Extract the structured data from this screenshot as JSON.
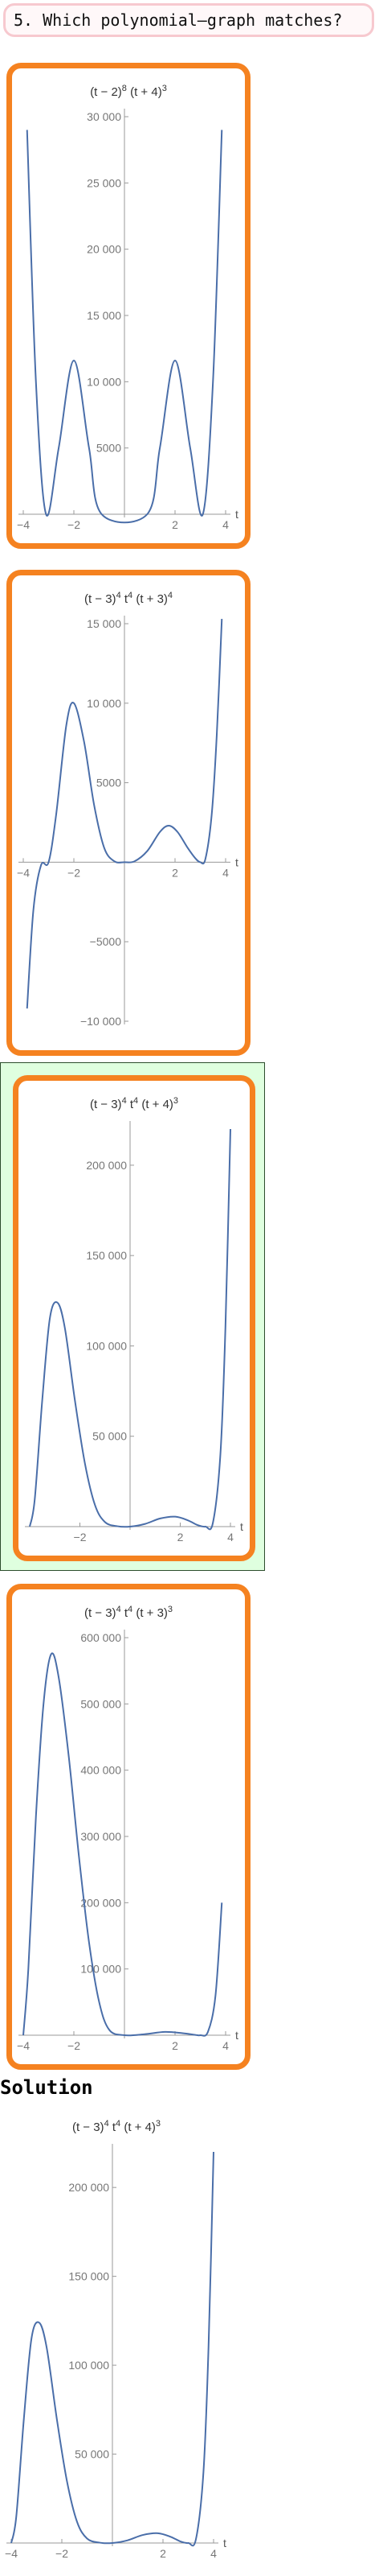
{
  "question": {
    "text": "5. Which polynomial–graph matches?"
  },
  "selected_option_index": 2,
  "options": [
    {
      "title_html": "(t − 2)<tspan baseline-shift='super' font-size='11'>8</tspan> (t + 4)<tspan baseline-shift='super' font-size='11'>3</tspan>",
      "title_text": "(t − 2)8 (t + 4)3",
      "chart_data": {
        "type": "line",
        "xlim": [
          -4,
          4
        ],
        "ylim": [
          0,
          30000
        ],
        "xticks": [
          -4,
          -2,
          2,
          4
        ],
        "yticks": [
          5000,
          10000,
          15000,
          20000,
          25000,
          30000
        ],
        "ytick_labels": [
          "5000",
          "10 000",
          "15 000",
          "20 000",
          "25 000",
          "30 000"
        ],
        "xtick_labels": [
          "−4",
          "−2",
          "2",
          "4"
        ],
        "xlabel": "t",
        "series": [
          {
            "fn": "sym",
            "points": [
              [
                -3.85,
                29000
              ],
              [
                -3.5,
                10000
              ],
              [
                -3.1,
                0
              ],
              [
                -2.6,
                5000
              ],
              [
                -2.0,
                11600
              ],
              [
                -1.4,
                5000
              ],
              [
                -0.9,
                0
              ],
              [
                0.9,
                0
              ],
              [
                1.4,
                5000
              ],
              [
                2.0,
                11600
              ],
              [
                2.6,
                5000
              ],
              [
                3.1,
                0
              ],
              [
                3.5,
                10000
              ],
              [
                3.85,
                29000
              ]
            ]
          }
        ]
      }
    },
    {
      "title_html": "(t − 3)<tspan baseline-shift='super' font-size='11'>4</tspan> t<tspan baseline-shift='super' font-size='11'>4</tspan> (t + 3)<tspan baseline-shift='super' font-size='11'>4</tspan>",
      "title_text": "(t − 3)4 t4 (t + 3)4",
      "chart_data": {
        "type": "line",
        "xlim": [
          -4,
          4
        ],
        "ylim": [
          -10000,
          15000
        ],
        "xticks": [
          -4,
          -2,
          2,
          4
        ],
        "yticks": [
          -10000,
          -5000,
          5000,
          10000,
          15000
        ],
        "ytick_labels": [
          "−10 000",
          "−5000",
          "5000",
          "10 000",
          "15 000"
        ],
        "xtick_labels": [
          "−4",
          "−2",
          "2",
          "4"
        ],
        "xlabel": "t",
        "series": [
          {
            "points": [
              [
                -3.85,
                -9200
              ],
              [
                -3.6,
                -3000
              ],
              [
                -3.3,
                -200
              ],
              [
                -3.0,
                0
              ],
              [
                -2.7,
                3000
              ],
              [
                -2.3,
                8600
              ],
              [
                -2.0,
                10000
              ],
              [
                -1.6,
                7600
              ],
              [
                -1.2,
                3600
              ],
              [
                -0.8,
                900
              ],
              [
                -0.4,
                60
              ],
              [
                0.0,
                0
              ],
              [
                0.4,
                60
              ],
              [
                0.9,
                700
              ],
              [
                1.4,
                1900
              ],
              [
                1.75,
                2300
              ],
              [
                2.1,
                1900
              ],
              [
                2.5,
                900
              ],
              [
                2.8,
                250
              ],
              [
                3.0,
                0
              ],
              [
                3.2,
                200
              ],
              [
                3.45,
                3000
              ],
              [
                3.65,
                8000
              ],
              [
                3.85,
                15300
              ]
            ]
          }
        ]
      }
    },
    {
      "title_html": "(t − 3)<tspan baseline-shift='super' font-size='11'>4</tspan> t<tspan baseline-shift='super' font-size='11'>4</tspan> (t + 4)<tspan baseline-shift='super' font-size='11'>3</tspan>",
      "title_text": "(t − 3)4 t4 (t + 4)3",
      "chart_data": {
        "type": "line",
        "xlim": [
          -4,
          4
        ],
        "ylim": [
          0,
          220000
        ],
        "xticks": [
          -2,
          2,
          4
        ],
        "yticks": [
          50000,
          100000,
          150000,
          200000
        ],
        "ytick_labels": [
          "50 000",
          "100 000",
          "150 000",
          "200 000"
        ],
        "xtick_labels": [
          "−2",
          "2",
          "4"
        ],
        "xlabel": "t",
        "series": [
          {
            "points": [
              [
                -4.0,
                0
              ],
              [
                -3.8,
                15000
              ],
              [
                -3.5,
                70000
              ],
              [
                -3.2,
                115000
              ],
              [
                -2.9,
                124000
              ],
              [
                -2.6,
                110000
              ],
              [
                -2.2,
                70000
              ],
              [
                -1.8,
                35000
              ],
              [
                -1.4,
                12000
              ],
              [
                -1.0,
                2500
              ],
              [
                -0.5,
                200
              ],
              [
                0.0,
                0
              ],
              [
                0.6,
                1500
              ],
              [
                1.2,
                4500
              ],
              [
                1.8,
                5500
              ],
              [
                2.3,
                3500
              ],
              [
                2.7,
                800
              ],
              [
                3.0,
                0
              ],
              [
                3.3,
                2000
              ],
              [
                3.6,
                40000
              ],
              [
                3.8,
                110000
              ],
              [
                4.0,
                220000
              ]
            ]
          }
        ]
      }
    },
    {
      "title_html": "(t − 3)<tspan baseline-shift='super' font-size='11'>4</tspan> t<tspan baseline-shift='super' font-size='11'>4</tspan> (t + 3)<tspan baseline-shift='super' font-size='11'>3</tspan>",
      "title_text": "(t − 3)4 t4 (t + 3)3",
      "chart_data": {
        "type": "line",
        "xlim": [
          -4,
          4
        ],
        "ylim": [
          0,
          600000
        ],
        "xticks": [
          -4,
          -2,
          2,
          4
        ],
        "yticks": [
          100000,
          200000,
          300000,
          400000,
          500000,
          600000
        ],
        "ytick_labels": [
          "100 000",
          "200 000",
          "300 000",
          "400 000",
          "500 000",
          "600 000"
        ],
        "xtick_labels": [
          "−4",
          "−2",
          "2",
          "4"
        ],
        "xlabel": "t",
        "series": [
          {
            "points": [
              [
                -4.0,
                0
              ],
              [
                -3.8,
                100000
              ],
              [
                -3.5,
                330000
              ],
              [
                -3.2,
                500000
              ],
              [
                -2.9,
                575000
              ],
              [
                -2.6,
                540000
              ],
              [
                -2.2,
                420000
              ],
              [
                -1.8,
                270000
              ],
              [
                -1.4,
                140000
              ],
              [
                -1.0,
                50000
              ],
              [
                -0.6,
                8000
              ],
              [
                0.0,
                0
              ],
              [
                0.8,
                1500
              ],
              [
                1.6,
                5000
              ],
              [
                2.3,
                3000
              ],
              [
                2.8,
                500
              ],
              [
                3.0,
                0
              ],
              [
                3.3,
                5000
              ],
              [
                3.6,
                60000
              ],
              [
                3.85,
                200000
              ]
            ]
          }
        ]
      }
    }
  ],
  "solution": {
    "heading": "Solution",
    "title_html": "(t − 3)<tspan baseline-shift='super' font-size='11'>4</tspan> t<tspan baseline-shift='super' font-size='11'>4</tspan> (t + 4)<tspan baseline-shift='super' font-size='11'>3</tspan>",
    "title_text": "(t − 3)4 t4 (t + 4)3",
    "chart_data": {
      "type": "line",
      "xlim": [
        -4,
        4
      ],
      "ylim": [
        0,
        220000
      ],
      "xticks": [
        -4,
        -2,
        2,
        4
      ],
      "yticks": [
        50000,
        100000,
        150000,
        200000
      ],
      "ytick_labels": [
        "50 000",
        "100 000",
        "150 000",
        "200 000"
      ],
      "xtick_labels": [
        "−4",
        "−2",
        "2",
        "4"
      ],
      "xlabel": "t",
      "series": [
        {
          "points": [
            [
              -4.0,
              0
            ],
            [
              -3.8,
              15000
            ],
            [
              -3.5,
              70000
            ],
            [
              -3.2,
              115000
            ],
            [
              -2.9,
              124000
            ],
            [
              -2.6,
              110000
            ],
            [
              -2.2,
              70000
            ],
            [
              -1.8,
              35000
            ],
            [
              -1.4,
              12000
            ],
            [
              -1.0,
              2500
            ],
            [
              -0.5,
              200
            ],
            [
              0.0,
              0
            ],
            [
              0.6,
              1500
            ],
            [
              1.2,
              4500
            ],
            [
              1.8,
              5500
            ],
            [
              2.3,
              3500
            ],
            [
              2.7,
              800
            ],
            [
              3.0,
              0
            ],
            [
              3.3,
              2000
            ],
            [
              3.6,
              40000
            ],
            [
              3.8,
              110000
            ],
            [
              4.0,
              220000
            ]
          ]
        }
      ]
    }
  },
  "colors": {
    "accent": "#f58220",
    "curve": "#4a6ea9",
    "selected_bg": "#dfffdf"
  }
}
